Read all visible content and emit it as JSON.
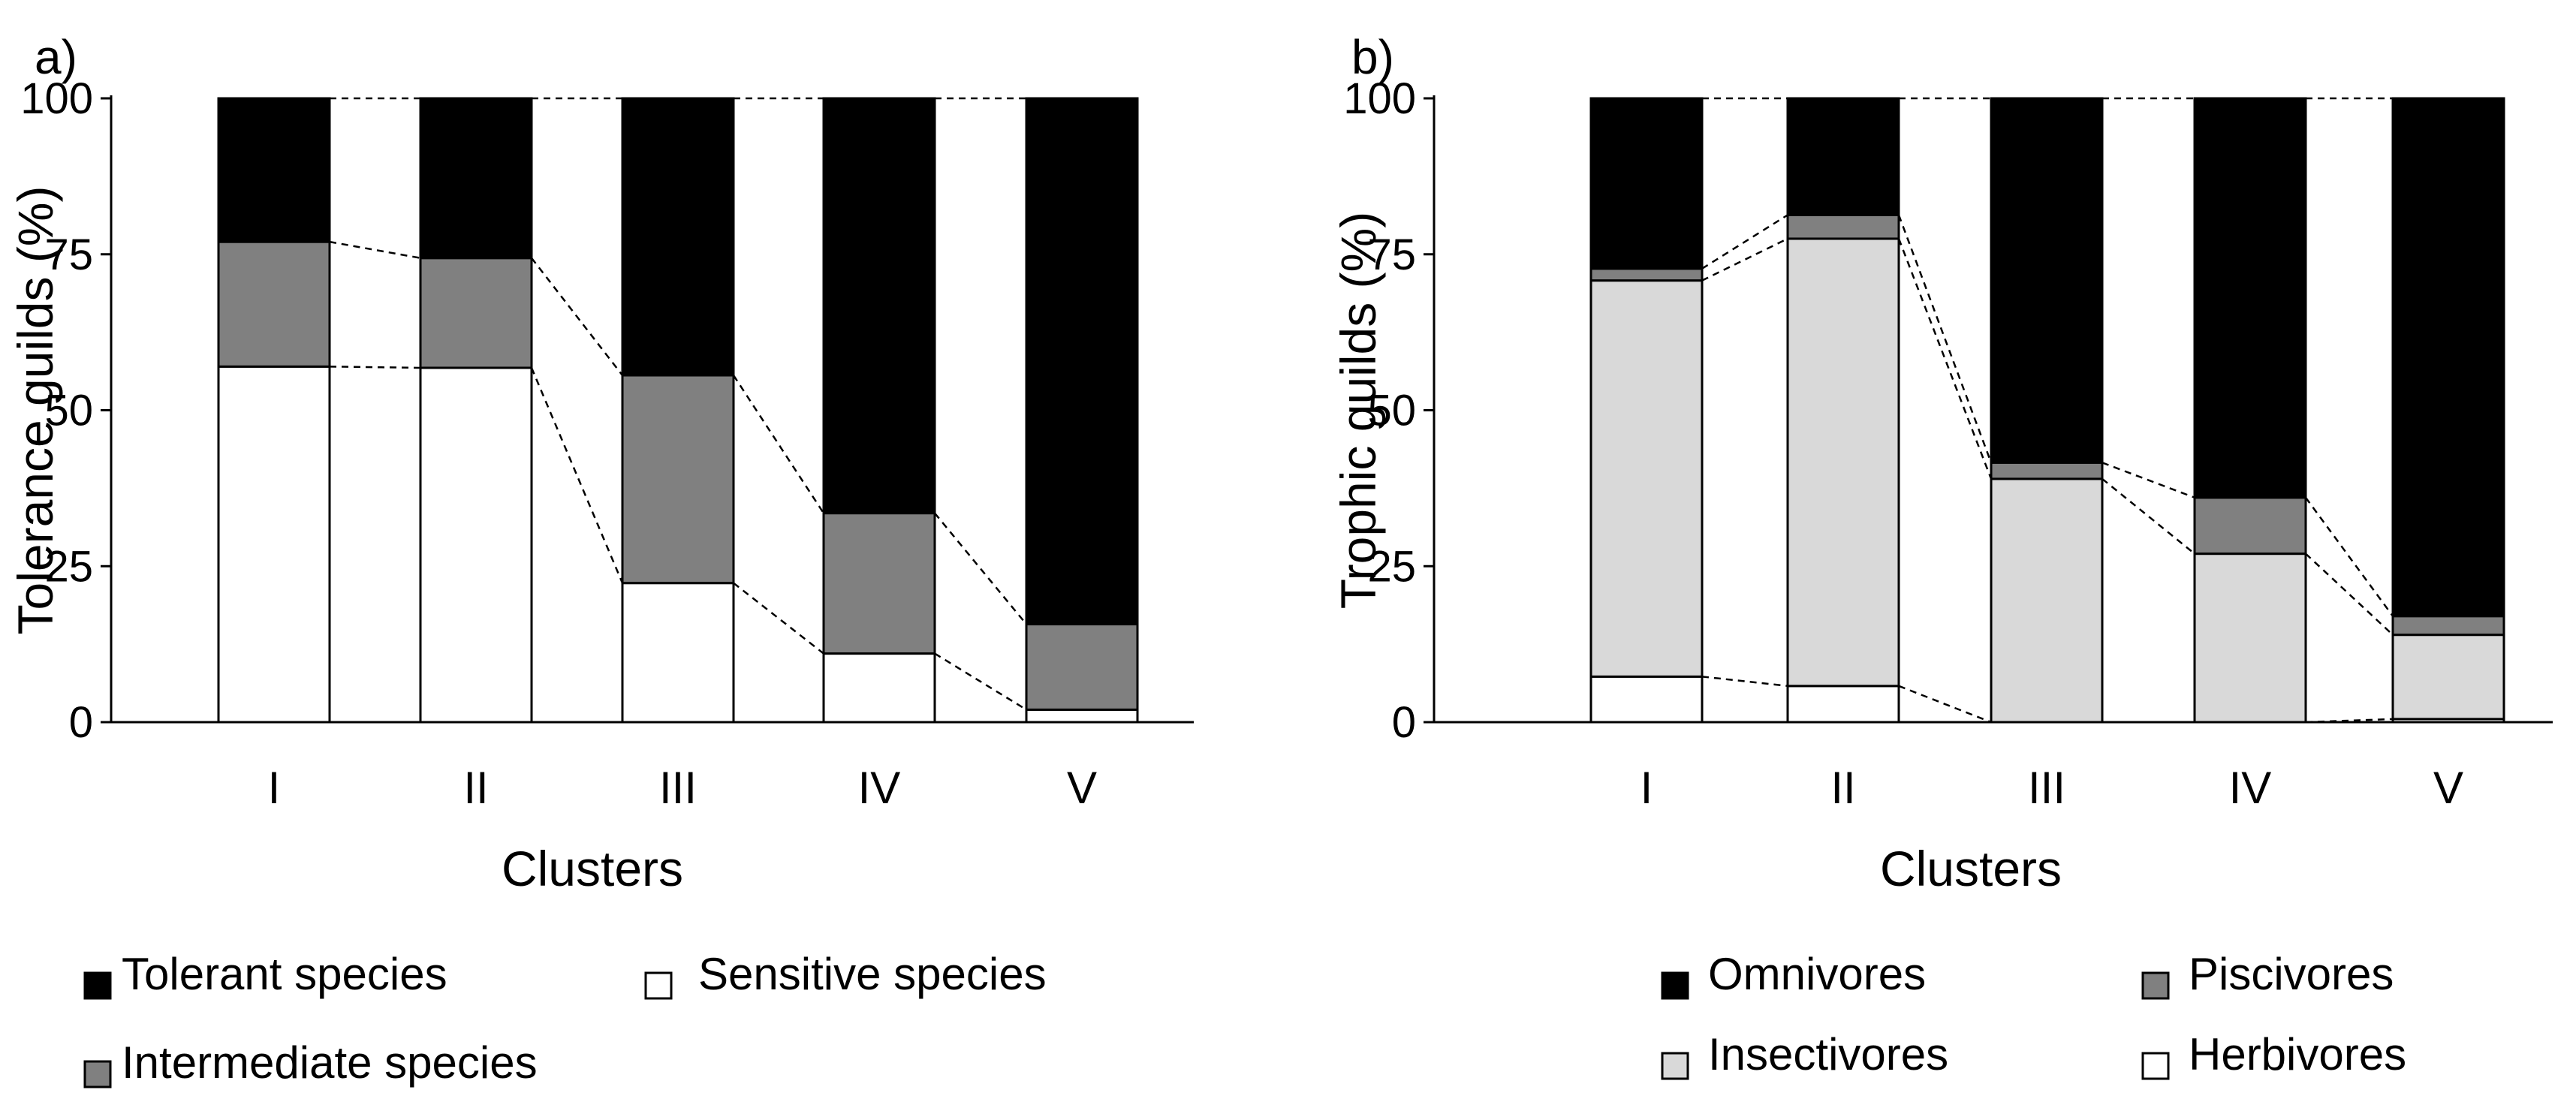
{
  "chart_data": [
    {
      "type": "bar",
      "stacked": true,
      "panel_label": "a)",
      "title": "",
      "xlabel": "Clusters",
      "ylabel": "Tolerance guilds (%)",
      "ylim": [
        0,
        100
      ],
      "yticks": [
        "0",
        "25",
        "50",
        "75",
        "100"
      ],
      "categories": [
        "I",
        "II",
        "III",
        "IV",
        "V"
      ],
      "series": [
        {
          "name": "Sensitive species",
          "color": "#ffffff",
          "values": [
            57,
            56.8,
            22.3,
            11,
            2
          ]
        },
        {
          "name": "Intermediate species",
          "color": "#808080",
          "values": [
            20,
            17.6,
            33.3,
            22.5,
            13.7
          ]
        },
        {
          "name": "Tolerant species",
          "color": "#000000",
          "values": [
            23,
            25.6,
            44.4,
            66.5,
            84.3
          ]
        }
      ],
      "legend": [
        {
          "label": "Tolerant species",
          "color": "#000000"
        },
        {
          "label": "Sensitive species",
          "color": "#ffffff"
        },
        {
          "label": "Intermediate species",
          "color": "#808080"
        }
      ]
    },
    {
      "type": "bar",
      "stacked": true,
      "panel_label": "b)",
      "title": "",
      "xlabel": "Clusters",
      "ylabel": "Trophic guilds (%)",
      "ylim": [
        0,
        100
      ],
      "yticks": [
        "0",
        "25",
        "50",
        "75",
        "100"
      ],
      "categories": [
        "I",
        "II",
        "III",
        "IV",
        "V"
      ],
      "series": [
        {
          "name": "Herbivores",
          "color": "#ffffff",
          "values": [
            7.3,
            5.8,
            0,
            0,
            0.5
          ]
        },
        {
          "name": "Insectivores",
          "color": "#d9d9d9",
          "values": [
            63.5,
            71.7,
            39,
            27,
            13.5
          ]
        },
        {
          "name": "Piscivores",
          "color": "#808080",
          "values": [
            1.9,
            3.8,
            2.6,
            9,
            3
          ]
        },
        {
          "name": "Omnivores",
          "color": "#000000",
          "values": [
            27.3,
            18.7,
            58.4,
            64,
            83
          ]
        }
      ],
      "legend": [
        {
          "label": "Omnivores",
          "color": "#000000"
        },
        {
          "label": "Piscivores",
          "color": "#808080"
        },
        {
          "label": "Insectivores",
          "color": "#d9d9d9"
        },
        {
          "label": "Herbivores",
          "color": "#ffffff"
        }
      ]
    }
  ]
}
